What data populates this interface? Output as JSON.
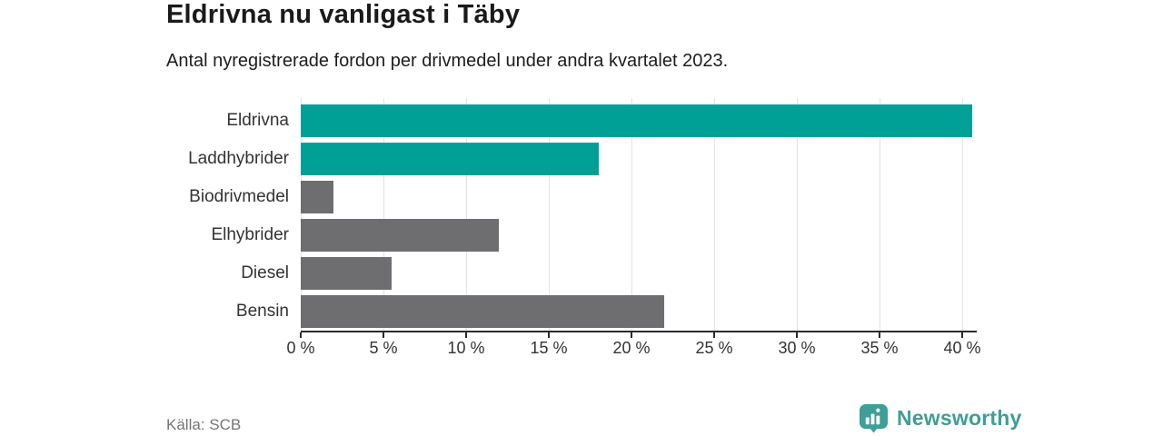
{
  "header": {
    "title": "Eldrivna nu vanligast i Täby",
    "subtitle": "Antal nyregistrerade fordon per drivmedel under andra kvartalet 2023."
  },
  "chart_data": {
    "type": "bar",
    "orientation": "horizontal",
    "title": "Eldrivna nu vanligast i Täby",
    "subtitle": "Antal nyregistrerade fordon per drivmedel under andra kvartalet 2023.",
    "categories": [
      "Eldrivna",
      "Laddhybrider",
      "Biodrivmedel",
      "Elhybrider",
      "Diesel",
      "Bensin"
    ],
    "values": [
      40.6,
      18,
      2,
      12,
      5.5,
      22
    ],
    "unit": "%",
    "bar_colors": [
      "#00a096",
      "#00a096",
      "#6e6e71",
      "#6e6e71",
      "#6e6e71",
      "#6e6e71"
    ],
    "xlim": [
      0,
      40.9
    ],
    "x_tick_values": [
      0,
      5,
      10,
      15,
      20,
      25,
      30,
      35,
      40
    ],
    "x_tick_labels": [
      "0 %",
      "5 %",
      "10 %",
      "15 %",
      "20 %",
      "25 %",
      "30 %",
      "35 %",
      "40 %"
    ],
    "grid": "vertical",
    "legend": "none"
  },
  "footer": {
    "source": "Källa: SCB",
    "brand": "Newsworthy"
  },
  "colors": {
    "teal": "#00a096",
    "gray": "#6e6e71",
    "logo_teal": "#3f9e97",
    "grid": "#e2e2e2",
    "axis": "#2b2b2b",
    "title_text": "#1a1a1a",
    "label_text": "#333333",
    "source_text": "#757575"
  }
}
